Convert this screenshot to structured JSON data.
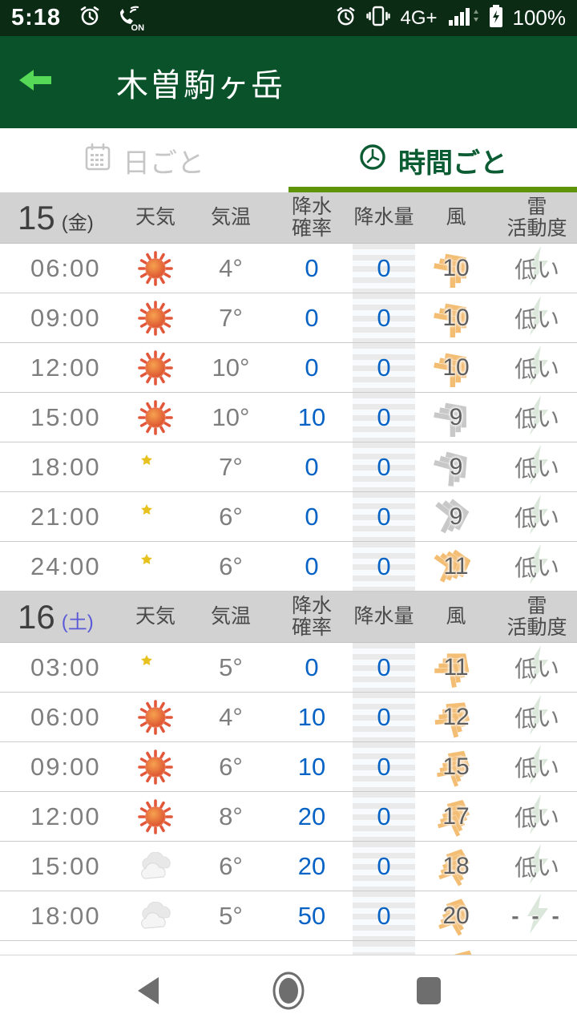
{
  "status_bar": {
    "time": "5:18",
    "vibrate_on_label": "ON",
    "network": "4G+",
    "battery": "100%"
  },
  "app_bar": {
    "title": "木曽駒ヶ岳"
  },
  "tabs": [
    {
      "label": "日ごと",
      "icon": "calendar-icon",
      "active": false
    },
    {
      "label": "時間ごと",
      "icon": "clock-icon",
      "active": true
    }
  ],
  "columns": {
    "weather": "天気",
    "temp": "気温",
    "precip_prob": "降水\n確率",
    "precip_amount": "降水量",
    "wind": "風",
    "thunder": "雷\n活動度"
  },
  "colors": {
    "header_green": "#0a5229",
    "status_green": "#0c2b15",
    "accent_green": "#5e9406",
    "active_tab": "#0b5c33",
    "blue_value": "#0663c5",
    "wind_orange": "#f3bd74",
    "wind_gray": "#c8c8c8",
    "saturday_blue": "#5a5ad8"
  },
  "sections": [
    {
      "date": "15",
      "weekday": "(金)",
      "weekday_color": "#3f3f3f",
      "rows": [
        {
          "time": "06:00",
          "weather": "sunny",
          "temp": "4°",
          "prob": "0",
          "amount": "0",
          "wind": "10",
          "wind_color": "orange",
          "wind_deg": -40,
          "thunder": "低い"
        },
        {
          "time": "09:00",
          "weather": "sunny",
          "temp": "7°",
          "prob": "0",
          "amount": "0",
          "wind": "10",
          "wind_color": "orange",
          "wind_deg": -40,
          "thunder": "低い"
        },
        {
          "time": "12:00",
          "weather": "sunny",
          "temp": "10°",
          "prob": "0",
          "amount": "0",
          "wind": "10",
          "wind_color": "orange",
          "wind_deg": -40,
          "thunder": "低い"
        },
        {
          "time": "15:00",
          "weather": "sunny",
          "temp": "10°",
          "prob": "10",
          "amount": "0",
          "wind": "9",
          "wind_color": "gray",
          "wind_deg": -40,
          "thunder": "低い"
        },
        {
          "time": "18:00",
          "weather": "moon",
          "temp": "7°",
          "prob": "0",
          "amount": "0",
          "wind": "9",
          "wind_color": "gray",
          "wind_deg": -35,
          "thunder": "低い"
        },
        {
          "time": "21:00",
          "weather": "moon",
          "temp": "6°",
          "prob": "0",
          "amount": "0",
          "wind": "9",
          "wind_color": "gray",
          "wind_deg": -12,
          "thunder": "低い"
        },
        {
          "time": "24:00",
          "weather": "moon",
          "temp": "6°",
          "prob": "0",
          "amount": "0",
          "wind": "11",
          "wind_color": "orange",
          "wind_deg": -15,
          "thunder": "低い"
        }
      ]
    },
    {
      "date": "16",
      "weekday": "(土)",
      "weekday_color": "#5a5ad8",
      "rows": [
        {
          "time": "03:00",
          "weather": "moon",
          "temp": "5°",
          "prob": "0",
          "amount": "0",
          "wind": "11",
          "wind_color": "orange",
          "wind_deg": -50,
          "thunder": "低い"
        },
        {
          "time": "06:00",
          "weather": "sunny",
          "temp": "4°",
          "prob": "10",
          "amount": "0",
          "wind": "12",
          "wind_color": "orange",
          "wind_deg": -55,
          "thunder": "低い"
        },
        {
          "time": "09:00",
          "weather": "sunny",
          "temp": "6°",
          "prob": "10",
          "amount": "0",
          "wind": "15",
          "wind_color": "orange",
          "wind_deg": -60,
          "thunder": "低い"
        },
        {
          "time": "12:00",
          "weather": "sunny",
          "temp": "8°",
          "prob": "20",
          "amount": "0",
          "wind": "17",
          "wind_color": "orange",
          "wind_deg": -65,
          "thunder": "低い"
        },
        {
          "time": "15:00",
          "weather": "cloudy",
          "temp": "6°",
          "prob": "20",
          "amount": "0",
          "wind": "18",
          "wind_color": "orange",
          "wind_deg": -70,
          "thunder": "低い"
        },
        {
          "time": "18:00",
          "weather": "cloudy",
          "temp": "5°",
          "prob": "50",
          "amount": "0",
          "wind": "20",
          "wind_color": "orange",
          "wind_deg": -70,
          "thunder": "---"
        }
      ]
    }
  ]
}
